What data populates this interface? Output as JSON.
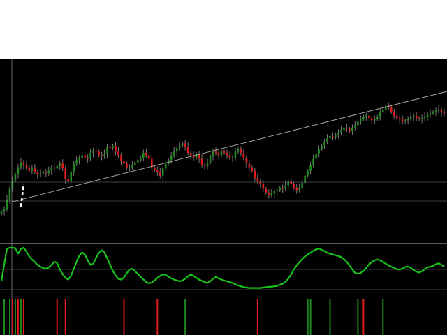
{
  "colors": {
    "background": "#000000",
    "top_area": "#ffffff",
    "bull_candle": "#1f8a1f",
    "bear_candle": "#e01b1b",
    "wick": "#7a7a7a",
    "oscillator_line": "#17c41a",
    "reference_lines": "#b8b8b8",
    "selection_marker": "#ffffff"
  },
  "icons": {
    "selection_marker": "white-dashed-line-marker"
  },
  "chart_data": [
    {
      "type": "candlestick",
      "panel": "price",
      "x_count": 160,
      "y_range": [
        0,
        100
      ],
      "grid": false,
      "legend": "none",
      "close": [
        8,
        10,
        18,
        27,
        34,
        39,
        45,
        49,
        47,
        45,
        42,
        44,
        41,
        39,
        40,
        41,
        40,
        42,
        45,
        44,
        46,
        48,
        44,
        35,
        33,
        41,
        48,
        51,
        53,
        55,
        53,
        52,
        57,
        59,
        58,
        55,
        54,
        56,
        62,
        61,
        63,
        58,
        55,
        50,
        48,
        44,
        45,
        47,
        49,
        51,
        53,
        57,
        55,
        52,
        45,
        43,
        41,
        38,
        44,
        48,
        51,
        55,
        58,
        61,
        63,
        65,
        62,
        57,
        55,
        53,
        56,
        52,
        47,
        46,
        49,
        54,
        58,
        57,
        55,
        58,
        57,
        55,
        53,
        53,
        58,
        60,
        57,
        53,
        48,
        45,
        42,
        36,
        33,
        31,
        27,
        24,
        22,
        23,
        25,
        26,
        28,
        27,
        30,
        33,
        31,
        28,
        26,
        28,
        32,
        38,
        42,
        47,
        52,
        56,
        60,
        63,
        66,
        69,
        71,
        70,
        72,
        74,
        76,
        78,
        77,
        75,
        78,
        80,
        83,
        85,
        87,
        88,
        86,
        84,
        85,
        87,
        91,
        93,
        96,
        95,
        91,
        88,
        86,
        85,
        83,
        84,
        85,
        87,
        88,
        86,
        85,
        86,
        87,
        89,
        90,
        91,
        92,
        93,
        91,
        90
      ]
    },
    {
      "type": "line",
      "panel": "oscillator",
      "x_count": 160,
      "y_range": [
        0,
        100
      ],
      "grid": false,
      "legend": "none",
      "values": [
        20,
        60,
        98,
        100,
        100,
        99,
        86,
        97,
        100,
        91,
        79,
        72,
        66,
        59,
        54,
        52,
        50,
        53,
        59,
        67,
        64,
        48,
        37,
        28,
        24,
        33,
        50,
        67,
        81,
        89,
        84,
        70,
        59,
        62,
        76,
        88,
        94,
        89,
        75,
        60,
        45,
        34,
        26,
        24,
        29,
        39,
        48,
        50,
        44,
        37,
        30,
        24,
        18,
        15,
        17,
        22,
        28,
        33,
        37,
        35,
        31,
        27,
        24,
        22,
        20,
        22,
        26,
        32,
        36,
        33,
        28,
        24,
        21,
        18,
        16,
        20,
        26,
        30,
        27,
        24,
        22,
        20,
        18,
        16,
        13,
        10,
        8,
        6,
        5,
        4,
        4,
        4,
        4,
        4,
        5,
        6,
        7,
        7,
        8,
        9,
        12,
        14,
        19,
        26,
        36,
        48,
        58,
        66,
        73,
        79,
        84,
        88,
        93,
        96,
        98,
        95,
        92,
        88,
        86,
        84,
        82,
        80,
        78,
        73,
        66,
        58,
        48,
        40,
        38,
        40,
        44,
        52,
        60,
        66,
        70,
        72,
        70,
        66,
        62,
        58,
        55,
        52,
        49,
        48,
        50,
        54,
        55,
        52,
        47,
        43,
        41,
        44,
        49,
        53,
        55,
        57,
        61,
        63,
        59,
        55
      ]
    },
    {
      "type": "bar",
      "panel": "signals",
      "x_count": 160,
      "buy_indices": [
        1,
        3,
        5,
        7,
        66,
        110,
        111,
        118,
        128,
        137
      ],
      "sell_indices": [
        4,
        6,
        8,
        20,
        23,
        44,
        56,
        92,
        130
      ]
    }
  ]
}
